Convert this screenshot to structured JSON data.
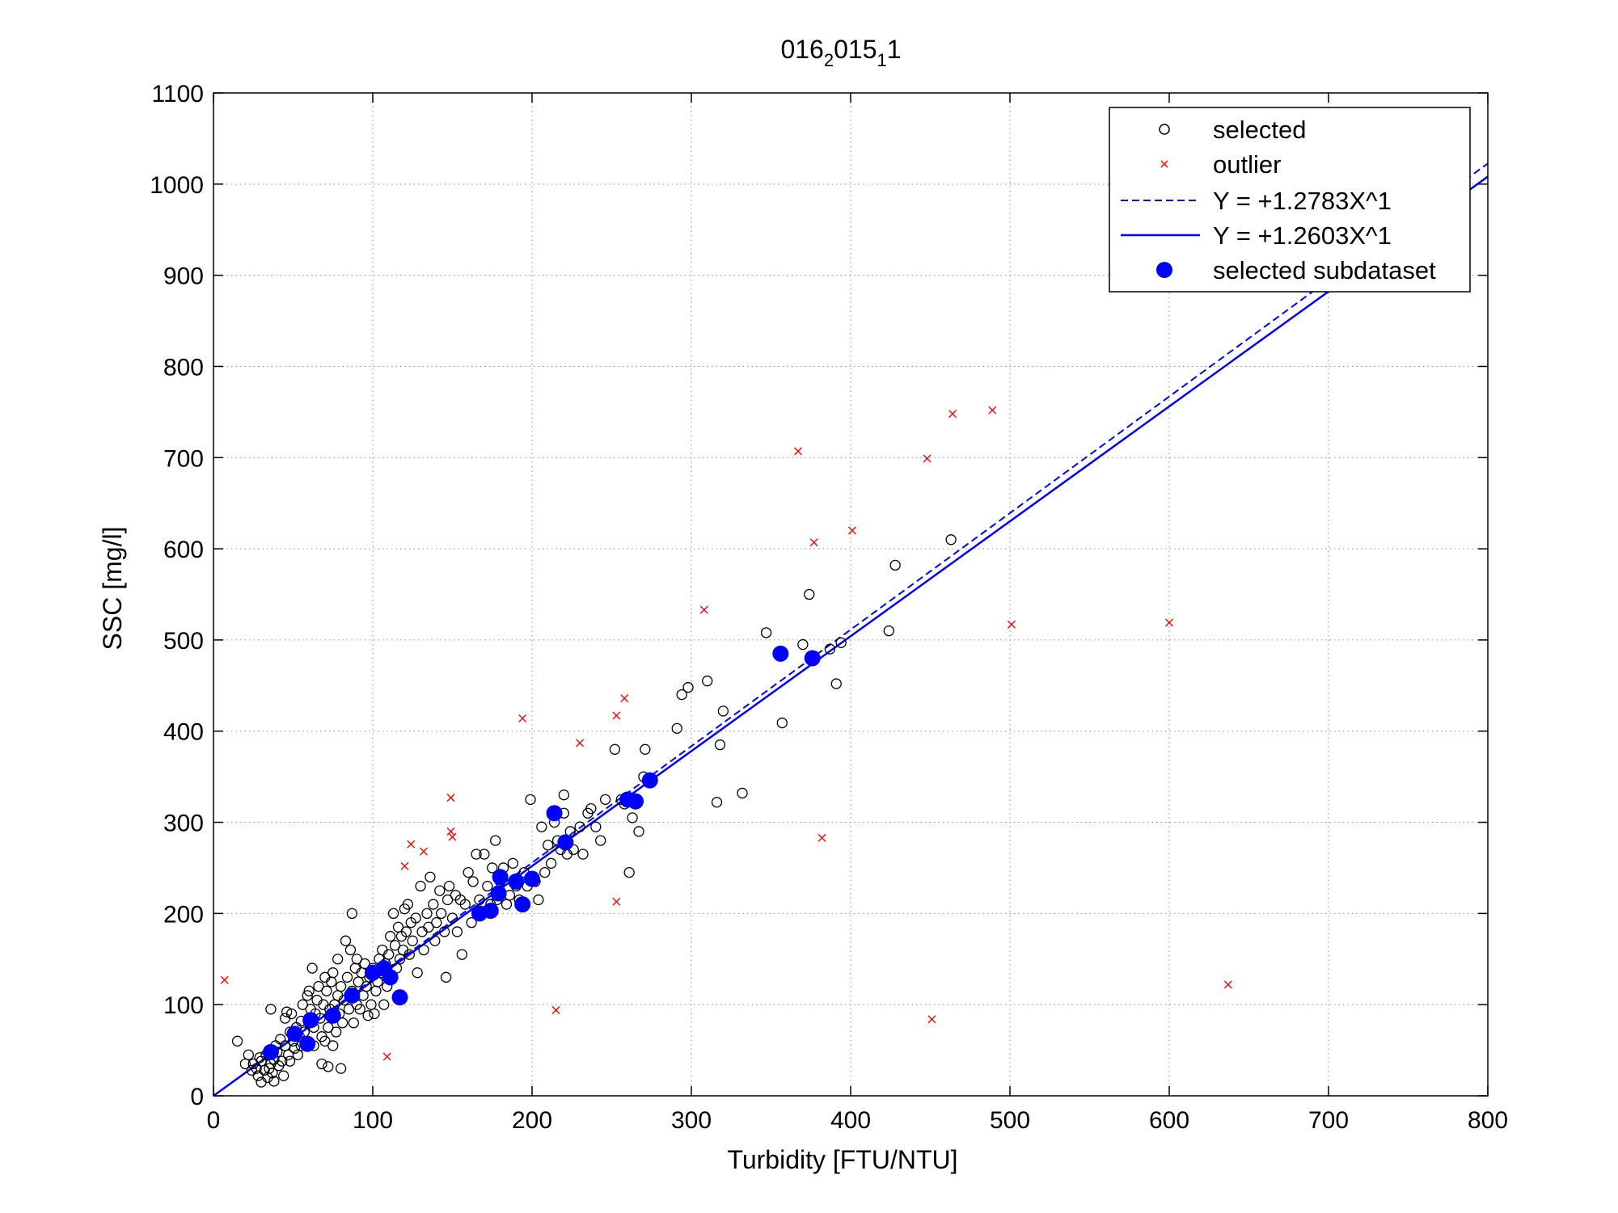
{
  "chart_data": {
    "type": "scatter",
    "title": {
      "base1": "016",
      "sub1": "2",
      "base2": "015",
      "sub2": "1",
      "base3": "1"
    },
    "xlabel": "Turbidity [FTU/NTU]",
    "ylabel": "SSC [mg/l]",
    "xlim": [
      0,
      800
    ],
    "ylim": [
      0,
      1100
    ],
    "xticks": [
      0,
      100,
      200,
      300,
      400,
      500,
      600,
      700,
      800
    ],
    "yticks": [
      0,
      100,
      200,
      300,
      400,
      500,
      600,
      700,
      800,
      900,
      1000,
      1100
    ],
    "grid": true,
    "legend_position": "top-right",
    "colors": {
      "selected": "#000000",
      "outlier": "#ff0000",
      "fit": "#0000ff",
      "subdataset": "#0000ff"
    },
    "legend": [
      "selected",
      "outlier",
      "Y = +1.2783X^1",
      "Y = +1.2603X^1",
      "selected subdataset"
    ],
    "series": [
      {
        "name": "selected",
        "marker": "open-circle",
        "points": [
          [
            25,
            35
          ],
          [
            27,
            30
          ],
          [
            28,
            22
          ],
          [
            29,
            42
          ],
          [
            30,
            15
          ],
          [
            30,
            38
          ],
          [
            32,
            28
          ],
          [
            33,
            45
          ],
          [
            34,
            20
          ],
          [
            35,
            30
          ],
          [
            36,
            35
          ],
          [
            36,
            95
          ],
          [
            37,
            25
          ],
          [
            38,
            40
          ],
          [
            38,
            16
          ],
          [
            39,
            55
          ],
          [
            40,
            48
          ],
          [
            41,
            33
          ],
          [
            42,
            62
          ],
          [
            43,
            38
          ],
          [
            44,
            22
          ],
          [
            45,
            55
          ],
          [
            45,
            85
          ],
          [
            46,
            92
          ],
          [
            47,
            45
          ],
          [
            48,
            70
          ],
          [
            48,
            38
          ],
          [
            49,
            90
          ],
          [
            50,
            60
          ],
          [
            51,
            52
          ],
          [
            52,
            75
          ],
          [
            53,
            45
          ],
          [
            54,
            65
          ],
          [
            55,
            55
          ],
          [
            55,
            82
          ],
          [
            56,
            100
          ],
          [
            57,
            70
          ],
          [
            58,
            58
          ],
          [
            59,
            110
          ],
          [
            60,
            80
          ],
          [
            60,
            115
          ],
          [
            61,
            95
          ],
          [
            62,
            140
          ],
          [
            63,
            75
          ],
          [
            63,
            55
          ],
          [
            64,
            90
          ],
          [
            65,
            105
          ],
          [
            66,
            120
          ],
          [
            67,
            85
          ],
          [
            68,
            65
          ],
          [
            68,
            35
          ],
          [
            69,
            100
          ],
          [
            70,
            130
          ],
          [
            70,
            60
          ],
          [
            71,
            115
          ],
          [
            72,
            75
          ],
          [
            72,
            32
          ],
          [
            73,
            95
          ],
          [
            74,
            125
          ],
          [
            75,
            55
          ],
          [
            75,
            135
          ],
          [
            76,
            100
          ],
          [
            77,
            70
          ],
          [
            78,
            110
          ],
          [
            78,
            150
          ],
          [
            79,
            90
          ],
          [
            80,
            120
          ],
          [
            80,
            30
          ],
          [
            81,
            80
          ],
          [
            82,
            105
          ],
          [
            83,
            170
          ],
          [
            84,
            130
          ],
          [
            85,
            95
          ],
          [
            86,
            160
          ],
          [
            87,
            115
          ],
          [
            87,
            200
          ],
          [
            88,
            80
          ],
          [
            89,
            140
          ],
          [
            90,
            100
          ],
          [
            90,
            150
          ],
          [
            91,
            125
          ],
          [
            92,
            95
          ],
          [
            93,
            135
          ],
          [
            94,
            110
          ],
          [
            95,
            145
          ],
          [
            96,
            120
          ],
          [
            97,
            88
          ],
          [
            98,
            130
          ],
          [
            99,
            100
          ],
          [
            100,
            140
          ],
          [
            101,
            90
          ],
          [
            102,
            115
          ],
          [
            103,
            125
          ],
          [
            104,
            150
          ],
          [
            105,
            135
          ],
          [
            106,
            160
          ],
          [
            107,
            100
          ],
          [
            108,
            145
          ],
          [
            109,
            120
          ],
          [
            110,
            155
          ],
          [
            111,
            175
          ],
          [
            112,
            130
          ],
          [
            113,
            200
          ],
          [
            114,
            165
          ],
          [
            115,
            140
          ],
          [
            116,
            185
          ],
          [
            117,
            150
          ],
          [
            118,
            175
          ],
          [
            119,
            160
          ],
          [
            120,
            205
          ],
          [
            121,
            180
          ],
          [
            122,
            210
          ],
          [
            123,
            155
          ],
          [
            124,
            190
          ],
          [
            125,
            170
          ],
          [
            127,
            195
          ],
          [
            128,
            135
          ],
          [
            130,
            230
          ],
          [
            131,
            180
          ],
          [
            132,
            160
          ],
          [
            134,
            200
          ],
          [
            135,
            185
          ],
          [
            136,
            240
          ],
          [
            138,
            210
          ],
          [
            139,
            170
          ],
          [
            140,
            190
          ],
          [
            142,
            225
          ],
          [
            143,
            200
          ],
          [
            145,
            180
          ],
          [
            146,
            130
          ],
          [
            147,
            215
          ],
          [
            148,
            230
          ],
          [
            150,
            195
          ],
          [
            152,
            220
          ],
          [
            153,
            180
          ],
          [
            155,
            215
          ],
          [
            156,
            155
          ],
          [
            158,
            210
          ],
          [
            160,
            245
          ],
          [
            162,
            190
          ],
          [
            163,
            235
          ],
          [
            165,
            265
          ],
          [
            167,
            215
          ],
          [
            168,
            200
          ],
          [
            170,
            265
          ],
          [
            172,
            230
          ],
          [
            174,
            210
          ],
          [
            175,
            250
          ],
          [
            177,
            280
          ],
          [
            178,
            215
          ],
          [
            180,
            235
          ],
          [
            182,
            250
          ],
          [
            184,
            210
          ],
          [
            186,
            220
          ],
          [
            188,
            255
          ],
          [
            190,
            230
          ],
          [
            192,
            215
          ],
          [
            195,
            245
          ],
          [
            197,
            230
          ],
          [
            199,
            325
          ],
          [
            202,
            235
          ],
          [
            204,
            215
          ],
          [
            206,
            295
          ],
          [
            208,
            245
          ],
          [
            210,
            275
          ],
          [
            212,
            255
          ],
          [
            214,
            300
          ],
          [
            216,
            280
          ],
          [
            218,
            270
          ],
          [
            220,
            330
          ],
          [
            220,
            310
          ],
          [
            222,
            265
          ],
          [
            224,
            290
          ],
          [
            226,
            270
          ],
          [
            230,
            295
          ],
          [
            232,
            265
          ],
          [
            235,
            310
          ],
          [
            237,
            315
          ],
          [
            240,
            295
          ],
          [
            243,
            280
          ],
          [
            246,
            325
          ],
          [
            252,
            380
          ],
          [
            256,
            325
          ],
          [
            258,
            320
          ],
          [
            261,
            245
          ],
          [
            263,
            305
          ],
          [
            267,
            290
          ],
          [
            270,
            350
          ],
          [
            271,
            380
          ],
          [
            275,
            345
          ],
          [
            291,
            403
          ],
          [
            294,
            440
          ],
          [
            298,
            448
          ],
          [
            310,
            455
          ],
          [
            316,
            322
          ],
          [
            318,
            385
          ],
          [
            320,
            422
          ],
          [
            332,
            332
          ],
          [
            347,
            508
          ],
          [
            357,
            409
          ],
          [
            370,
            495
          ],
          [
            374,
            550
          ],
          [
            387,
            490
          ],
          [
            391,
            452
          ],
          [
            394,
            497
          ],
          [
            424,
            510
          ],
          [
            428,
            582
          ],
          [
            463,
            610
          ],
          [
            15,
            60
          ],
          [
            20,
            35
          ],
          [
            22,
            45
          ],
          [
            24,
            28
          ]
        ]
      },
      {
        "name": "outlier",
        "marker": "x",
        "points": [
          [
            7,
            127
          ],
          [
            109,
            43
          ],
          [
            120,
            252
          ],
          [
            124,
            276
          ],
          [
            132,
            268
          ],
          [
            149,
            327
          ],
          [
            149,
            290
          ],
          [
            150,
            284
          ],
          [
            194,
            414
          ],
          [
            215,
            94
          ],
          [
            230,
            387
          ],
          [
            253,
            213
          ],
          [
            253,
            417
          ],
          [
            258,
            436
          ],
          [
            308,
            533
          ],
          [
            367,
            707
          ],
          [
            377,
            607
          ],
          [
            382,
            283
          ],
          [
            401,
            620
          ],
          [
            448,
            699
          ],
          [
            451,
            84
          ],
          [
            464,
            748
          ],
          [
            489,
            752
          ],
          [
            501,
            517
          ],
          [
            600,
            519
          ],
          [
            637,
            122
          ]
        ]
      },
      {
        "name": "selected subdataset",
        "marker": "filled-circle",
        "points": [
          [
            36,
            48
          ],
          [
            51,
            68
          ],
          [
            59,
            57
          ],
          [
            61,
            83
          ],
          [
            75,
            88
          ],
          [
            87,
            110
          ],
          [
            100,
            135
          ],
          [
            107,
            140
          ],
          [
            111,
            130
          ],
          [
            117,
            108
          ],
          [
            167,
            200
          ],
          [
            174,
            203
          ],
          [
            179,
            222
          ],
          [
            180,
            240
          ],
          [
            190,
            235
          ],
          [
            194,
            210
          ],
          [
            200,
            238
          ],
          [
            214,
            310
          ],
          [
            221,
            278
          ],
          [
            260,
            325
          ],
          [
            265,
            323
          ],
          [
            274,
            346
          ],
          [
            356,
            485
          ],
          [
            376,
            480
          ]
        ]
      }
    ],
    "fits": [
      {
        "name": "Y = +1.2783X^1",
        "coefficient": 1.2783,
        "exponent": 1,
        "style": "dashed"
      },
      {
        "name": "Y = +1.2603X^1",
        "coefficient": 1.2603,
        "exponent": 1,
        "style": "solid"
      }
    ]
  }
}
